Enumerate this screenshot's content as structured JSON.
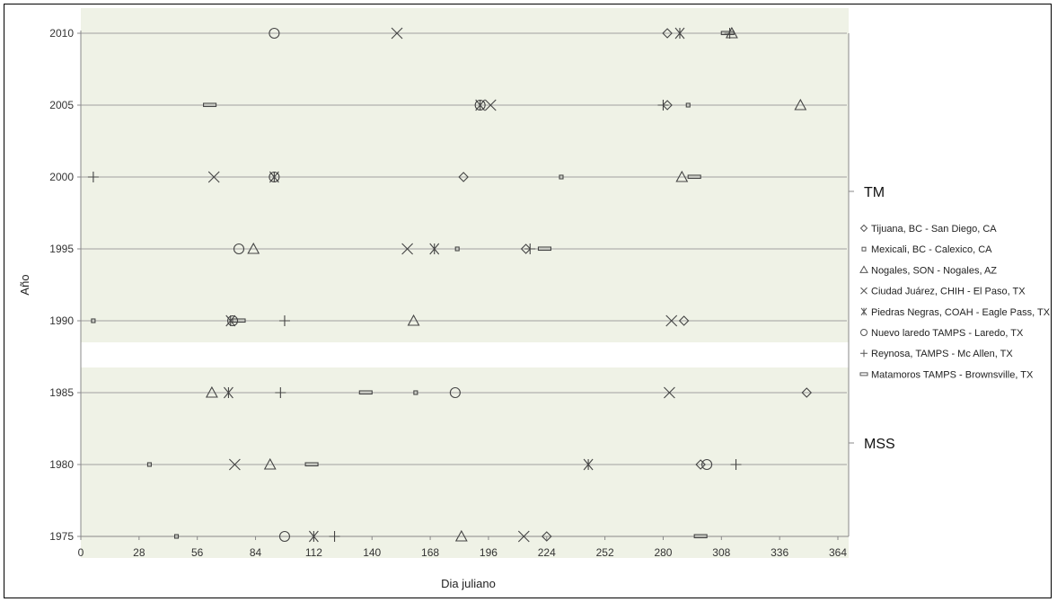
{
  "chart_data": {
    "type": "scatter",
    "title": "",
    "xlabel": "Dia juliano",
    "ylabel": "Año",
    "xlim": [
      0,
      364
    ],
    "ylim": [
      1975,
      2010
    ],
    "x_ticks": [
      "0",
      "28",
      "56",
      "84",
      "112",
      "140",
      "168",
      "196",
      "224",
      "252",
      "280",
      "308",
      "336",
      "364"
    ],
    "y_ticks": [
      "1975",
      "1980",
      "1985",
      "1990",
      "1995",
      "2000",
      "2005",
      "2010"
    ],
    "groups": [
      {
        "label": "TM",
        "range": [
          1990,
          2010
        ]
      },
      {
        "label": "MSS",
        "range": [
          1975,
          1985
        ]
      }
    ],
    "legend_position": "right",
    "series": [
      {
        "name": "Tijuana, BC - San Diego, CA",
        "marker": "diamond",
        "points": [
          [
            282,
            2010
          ],
          [
            282,
            2005
          ],
          [
            184,
            2000
          ],
          [
            214,
            1995
          ],
          [
            290,
            1990
          ],
          [
            349,
            1985
          ],
          [
            298,
            1980
          ],
          [
            224,
            1975
          ]
        ]
      },
      {
        "name": "Mexicali, BC -  Calexico, CA",
        "marker": "square",
        "points": [
          [
            292,
            2005
          ],
          [
            231,
            2000
          ],
          [
            181,
            1995
          ],
          [
            6,
            1990
          ],
          [
            161,
            1985
          ],
          [
            33,
            1980
          ],
          [
            46,
            1975
          ]
        ]
      },
      {
        "name": "Nogales, SON - Nogales, AZ",
        "marker": "triangle",
        "points": [
          [
            313,
            2010
          ],
          [
            346,
            2005
          ],
          [
            289,
            2000
          ],
          [
            83,
            1995
          ],
          [
            160,
            1990
          ],
          [
            63,
            1985
          ],
          [
            91,
            1980
          ],
          [
            183,
            1975
          ]
        ]
      },
      {
        "name": "Ciudad Juárez, CHIH - El Paso, TX",
        "marker": "x",
        "points": [
          [
            152,
            2010
          ],
          [
            197,
            2005
          ],
          [
            64,
            2000
          ],
          [
            157,
            1995
          ],
          [
            284,
            1990
          ],
          [
            283,
            1985
          ],
          [
            74,
            1980
          ],
          [
            213,
            1975
          ]
        ]
      },
      {
        "name": "Piedras Negras, COAH - Eagle Pass, TX",
        "marker": "asterisk",
        "points": [
          [
            288,
            2010
          ],
          [
            192,
            2005
          ],
          [
            93,
            2000
          ],
          [
            170,
            1995
          ],
          [
            72,
            1990
          ],
          [
            71,
            1985
          ],
          [
            244,
            1980
          ],
          [
            112,
            1975
          ]
        ]
      },
      {
        "name": "Nuevo laredo TAMPS - Laredo, TX",
        "marker": "circle",
        "points": [
          [
            93,
            2010
          ],
          [
            192,
            2005
          ],
          [
            93,
            2000
          ],
          [
            76,
            1995
          ],
          [
            73,
            1990
          ],
          [
            180,
            1985
          ],
          [
            301,
            1980
          ],
          [
            98,
            1975
          ]
        ]
      },
      {
        "name": "Reynosa, TAMPS - Mc Allen, TX",
        "marker": "plus",
        "points": [
          [
            312,
            2010
          ],
          [
            280,
            2005
          ],
          [
            6,
            2000
          ],
          [
            216,
            1995
          ],
          [
            98,
            1990
          ],
          [
            96,
            1985
          ],
          [
            315,
            1980
          ],
          [
            122,
            1975
          ]
        ]
      },
      {
        "name": "Matamoros TAMPS - Brownsville, TX",
        "marker": "dash",
        "points": [
          [
            311,
            2010
          ],
          [
            62,
            2005
          ],
          [
            295,
            2000
          ],
          [
            223,
            1995
          ],
          [
            76,
            1990
          ],
          [
            137,
            1985
          ],
          [
            111,
            1980
          ],
          [
            298,
            1975
          ]
        ]
      }
    ]
  }
}
